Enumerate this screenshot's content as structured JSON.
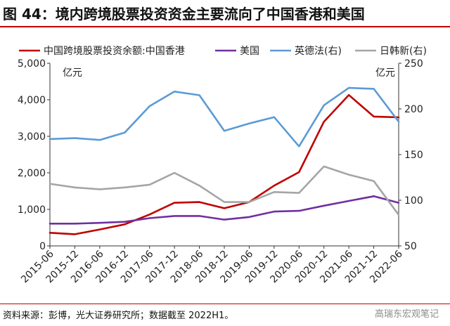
{
  "header": {
    "figure_title": "图 44：境内跨境股票投资资金主要流向了中国香港和美国"
  },
  "footer": {
    "source": "资料来源：彭博，光大证券研究所；数据截至 2022H1。",
    "watermark": "高瑞东宏观笔记"
  },
  "chart_data": {
    "type": "line",
    "title": "",
    "x": [
      "2015-06",
      "2015-12",
      "2016-06",
      "2016-12",
      "2017-06",
      "2017-12",
      "2018-06",
      "2018-12",
      "2019-06",
      "2019-12",
      "2020-06",
      "2020-12",
      "2021-06",
      "2021-12",
      "2022-06"
    ],
    "left_axis": {
      "unit_label": "亿元",
      "ylim": [
        0,
        5000
      ],
      "ticks": [
        "0",
        "1,000",
        "2,000",
        "3,000",
        "4,000",
        "5,000"
      ]
    },
    "right_axis": {
      "unit_label": "亿元",
      "ylim": [
        50,
        250
      ],
      "ticks": [
        "50",
        "100",
        "150",
        "200",
        "250"
      ]
    },
    "legend_position": "top",
    "series": [
      {
        "name": "中国跨境股票投资余额:中国香港",
        "axis": "left",
        "color": "#c00000",
        "values": [
          360,
          320,
          450,
          590,
          860,
          1180,
          1200,
          1030,
          1200,
          1650,
          2020,
          3400,
          4130,
          3540,
          3520
        ]
      },
      {
        "name": "美国",
        "axis": "left",
        "color": "#7030a0",
        "values": [
          610,
          610,
          630,
          660,
          760,
          820,
          820,
          720,
          790,
          940,
          960,
          1100,
          1230,
          1360,
          1180
        ]
      },
      {
        "name": "英德法(右)",
        "axis": "right",
        "color": "#5b9bd5",
        "values": [
          167,
          168,
          166,
          174,
          203,
          219,
          215,
          176,
          184,
          191,
          159,
          204,
          223,
          222,
          186
        ]
      },
      {
        "name": "日韩新(右)",
        "axis": "right",
        "color": "#a5a5a5",
        "values": [
          118,
          114,
          112,
          114,
          117,
          130,
          116,
          98,
          98,
          109,
          108,
          137,
          128,
          121,
          84
        ]
      }
    ]
  }
}
